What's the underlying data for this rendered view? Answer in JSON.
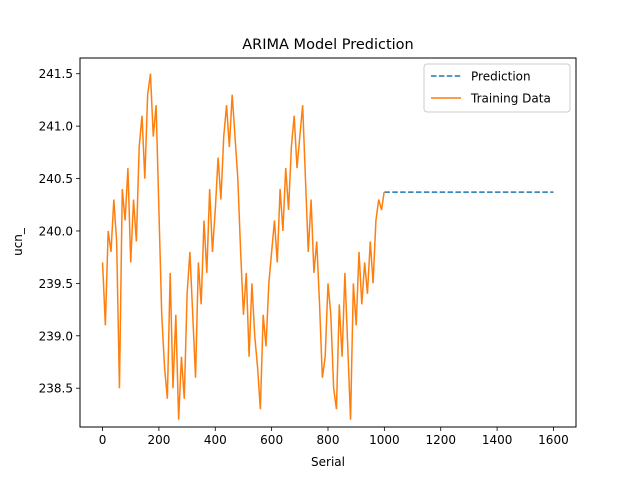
{
  "chart_data": {
    "type": "line",
    "title": "ARIMA Model Prediction",
    "xlabel": "Serial",
    "ylabel": "ucn_",
    "xlim": [
      -80,
      1680
    ],
    "ylim": [
      238.13,
      241.65
    ],
    "xticks": [
      0,
      200,
      400,
      600,
      800,
      1000,
      1200,
      1400,
      1600
    ],
    "yticks": [
      238.5,
      239.0,
      239.5,
      240.0,
      240.5,
      241.0,
      241.5
    ],
    "ytick_labels": [
      "238.5",
      "239.0",
      "239.5",
      "240.0",
      "240.5",
      "241.0",
      "241.5"
    ],
    "grid": false,
    "legend_position": "top-right",
    "series": [
      {
        "name": "Prediction",
        "color": "#1f77b4",
        "style": "dashed",
        "x": [
          1000,
          1600
        ],
        "y": [
          240.37,
          240.37
        ]
      },
      {
        "name": "Training Data",
        "color": "#ff7f0e",
        "style": "solid",
        "x": [
          0,
          10,
          20,
          30,
          40,
          50,
          60,
          70,
          80,
          90,
          100,
          110,
          120,
          130,
          140,
          150,
          160,
          170,
          180,
          190,
          200,
          210,
          220,
          230,
          240,
          250,
          260,
          270,
          280,
          290,
          300,
          310,
          320,
          330,
          340,
          350,
          360,
          370,
          380,
          390,
          400,
          410,
          420,
          430,
          440,
          450,
          460,
          470,
          480,
          490,
          500,
          510,
          520,
          530,
          540,
          550,
          560,
          570,
          580,
          590,
          600,
          610,
          620,
          630,
          640,
          650,
          660,
          670,
          680,
          690,
          700,
          710,
          720,
          730,
          740,
          750,
          760,
          770,
          780,
          790,
          800,
          810,
          820,
          830,
          840,
          850,
          860,
          870,
          880,
          890,
          900,
          910,
          920,
          930,
          940,
          950,
          960,
          970,
          980,
          990,
          999
        ],
        "y": [
          239.7,
          239.1,
          240.0,
          239.8,
          240.3,
          239.9,
          238.5,
          240.4,
          240.1,
          240.6,
          239.7,
          240.3,
          239.9,
          240.8,
          241.1,
          240.5,
          241.3,
          241.5,
          240.9,
          241.2,
          240.2,
          239.2,
          238.7,
          238.4,
          239.6,
          238.5,
          239.2,
          238.2,
          238.8,
          238.4,
          239.4,
          239.8,
          239.2,
          238.6,
          239.7,
          239.3,
          240.1,
          239.6,
          240.4,
          239.8,
          240.2,
          240.7,
          240.3,
          240.9,
          241.2,
          240.8,
          241.3,
          240.9,
          240.5,
          239.8,
          239.2,
          239.6,
          238.8,
          239.5,
          239.0,
          238.7,
          238.3,
          239.2,
          238.9,
          239.5,
          239.8,
          240.1,
          239.7,
          240.4,
          240.0,
          240.6,
          240.2,
          240.8,
          241.1,
          240.6,
          240.9,
          241.2,
          240.5,
          239.8,
          240.3,
          239.6,
          239.9,
          239.3,
          238.6,
          238.8,
          239.5,
          239.2,
          238.5,
          238.3,
          239.3,
          238.8,
          239.6,
          238.9,
          238.2,
          239.5,
          239.1,
          239.8,
          239.3,
          239.7,
          239.4,
          239.9,
          239.5,
          240.1,
          240.3,
          240.2,
          240.37
        ]
      }
    ]
  }
}
